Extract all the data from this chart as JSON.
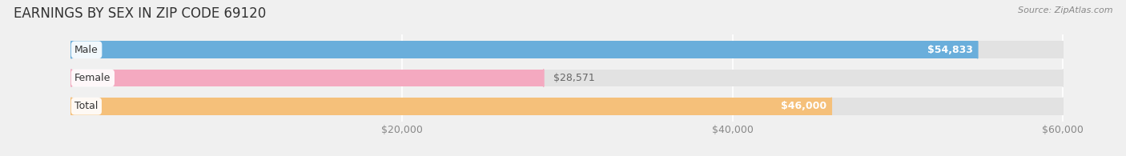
{
  "title": "EARNINGS BY SEX IN ZIP CODE 69120",
  "source_text": "Source: ZipAtlas.com",
  "categories": [
    "Male",
    "Female",
    "Total"
  ],
  "values": [
    54833,
    28571,
    46000
  ],
  "bar_colors": [
    "#6aaedb",
    "#f4a9c0",
    "#f5c07a"
  ],
  "label_inside": [
    true,
    false,
    true
  ],
  "xlim_data": [
    0,
    60000
  ],
  "xlim_display": [
    -3500,
    63000
  ],
  "xticks": [
    20000,
    40000,
    60000
  ],
  "xtick_labels": [
    "$20,000",
    "$40,000",
    "$60,000"
  ],
  "value_labels": [
    "$54,833",
    "$28,571",
    "$46,000"
  ],
  "bar_height": 0.62,
  "bg_color": "#f0f0f0",
  "bar_bg_color": "#e2e2e2",
  "title_fontsize": 12,
  "source_fontsize": 8,
  "label_fontsize": 9,
  "tick_fontsize": 9,
  "cat_fontsize": 9
}
